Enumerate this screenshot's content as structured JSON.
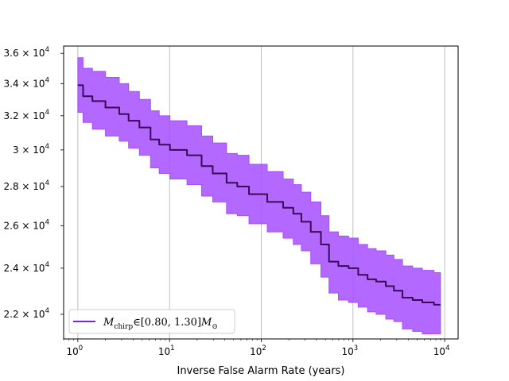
{
  "chart_data": {
    "type": "line",
    "title": "",
    "xlabel": "Inverse False Alarm Rate (years)",
    "ylabel": "",
    "x_scale": "log",
    "y_scale": "log",
    "xlim": [
      0.7,
      14000
    ],
    "ylim": [
      21000,
      36500
    ],
    "grid": "vertical major gridlines",
    "legend_position": "lower-left",
    "x_ticks": [
      {
        "value": 1,
        "label": "10^0"
      },
      {
        "value": 10,
        "label": "10^1"
      },
      {
        "value": 100,
        "label": "10^2"
      },
      {
        "value": 1000,
        "label": "10^3"
      },
      {
        "value": 10000,
        "label": "10^4"
      }
    ],
    "y_ticks": [
      {
        "value": 22000,
        "label": "2.2 × 10^4"
      },
      {
        "value": 24000,
        "label": "2.4 × 10^4"
      },
      {
        "value": 26000,
        "label": "2.6 × 10^4"
      },
      {
        "value": 28000,
        "label": "2.8 × 10^4"
      },
      {
        "value": 30000,
        "label": "3 × 10^4"
      },
      {
        "value": 32000,
        "label": "3.2 × 10^4"
      },
      {
        "value": 34000,
        "label": "3.4 × 10^4"
      },
      {
        "value": 36000,
        "label": "3.6 × 10^4"
      }
    ],
    "series": [
      {
        "name": "M_chirp ∈ [0.80, 1.30] M_⊙",
        "line_color": "#3b0a55",
        "band_color": "#a64dff",
        "x": [
          1,
          1.3,
          1.6,
          2.5,
          3.2,
          4,
          5.5,
          7,
          8.5,
          12,
          20,
          25,
          35,
          50,
          60,
          90,
          150,
          200,
          250,
          300,
          400,
          500,
          600,
          800,
          1000,
          1300,
          1600,
          2000,
          2600,
          3000,
          4000,
          5000,
          6500,
          9000
        ],
        "y": [
          33900,
          33200,
          32900,
          32500,
          32100,
          31700,
          31300,
          30600,
          30300,
          30000,
          29700,
          29100,
          28700,
          28200,
          28000,
          27600,
          27200,
          26900,
          26600,
          26200,
          25700,
          25100,
          24300,
          24100,
          24000,
          23700,
          23500,
          23400,
          23200,
          23000,
          22700,
          22600,
          22500,
          22400
        ],
        "lower": [
          32200,
          31600,
          31200,
          30800,
          30500,
          30100,
          29700,
          29000,
          28700,
          28400,
          28100,
          27500,
          27200,
          26600,
          26500,
          26100,
          25700,
          25400,
          25100,
          24800,
          24200,
          23600,
          22900,
          22600,
          22500,
          22300,
          22100,
          22000,
          21800,
          21700,
          21400,
          21300,
          21200,
          21200
        ],
        "upper": [
          35700,
          35000,
          34800,
          34400,
          34000,
          33500,
          33000,
          32300,
          32000,
          31700,
          31400,
          30800,
          30400,
          29800,
          29700,
          29200,
          28800,
          28400,
          28100,
          27700,
          27200,
          26500,
          25700,
          25500,
          25400,
          25100,
          24900,
          24800,
          24600,
          24400,
          24100,
          24000,
          23900,
          23800
        ]
      }
    ],
    "legend": [
      {
        "label": "M_chirp ∈ [0.80, 1.30] M_⊙",
        "color": "#7a1fff"
      }
    ]
  }
}
